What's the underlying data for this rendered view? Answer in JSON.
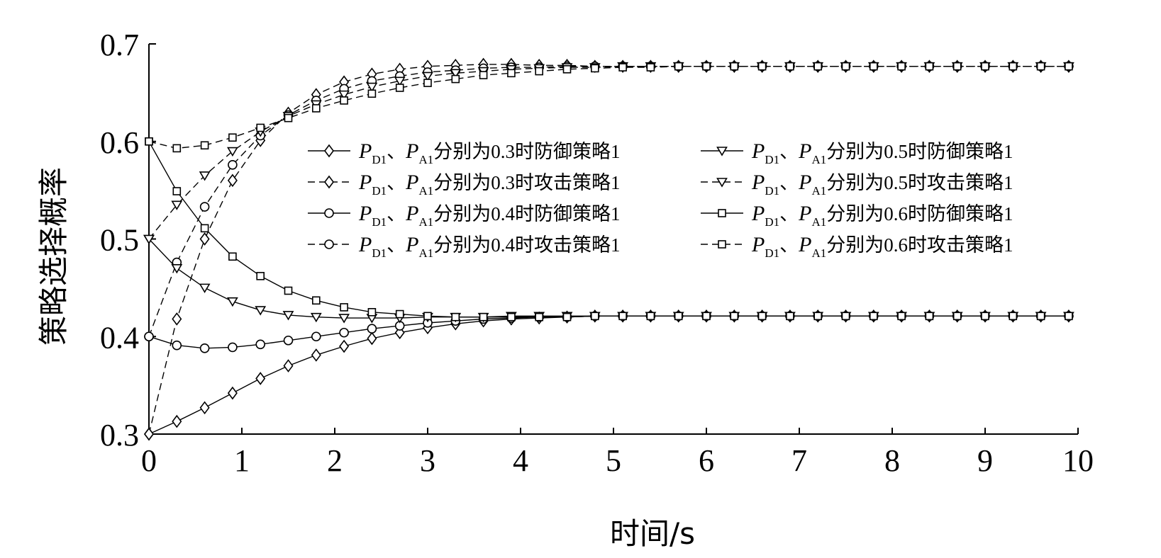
{
  "chart_data": {
    "type": "line",
    "xlabel": "时间/s",
    "ylabel": "策略选择概率",
    "xlim": [
      0,
      10
    ],
    "ylim": [
      0.3,
      0.7
    ],
    "xticks": [
      "0",
      "1",
      "2",
      "3",
      "4",
      "5",
      "6",
      "7",
      "8",
      "9",
      "10"
    ],
    "yticks": [
      "0.3",
      "0.4",
      "0.5",
      "0.6",
      "0.7"
    ],
    "grid": false,
    "legend_position": "center-right",
    "colors": {
      "line": "#000000",
      "background": "#ffffff"
    },
    "x": [
      0,
      0.3,
      0.6,
      0.9,
      1.2,
      1.5,
      1.8,
      2.1,
      2.4,
      2.7,
      3.0,
      3.3,
      3.6,
      3.9,
      4.2,
      4.5,
      4.8,
      5.1,
      5.4,
      5.7,
      6.0,
      6.3,
      6.6,
      6.9,
      7.2,
      7.5,
      7.8,
      8.1,
      8.4,
      8.7,
      9.0,
      9.3,
      9.6,
      9.9
    ],
    "series": [
      {
        "legend": {
          "var1": "P",
          "sub1": "D1",
          "sep": "、",
          "var2": "P",
          "sub2": "A1",
          "text": "分别为",
          "num": "0.3",
          "suffix": "时防御策略",
          "tail": "1"
        },
        "marker": "diamond",
        "dash": "solid",
        "values": [
          0.3,
          0.313,
          0.327,
          0.342,
          0.357,
          0.37,
          0.381,
          0.39,
          0.398,
          0.404,
          0.409,
          0.413,
          0.416,
          0.418,
          0.419,
          0.42,
          0.421,
          0.421,
          0.421,
          0.421,
          0.421,
          0.421,
          0.421,
          0.421,
          0.421,
          0.421,
          0.421,
          0.421,
          0.421,
          0.421,
          0.421,
          0.421,
          0.421,
          0.421
        ]
      },
      {
        "legend": {
          "var1": "P",
          "sub1": "D1",
          "sep": "、",
          "var2": "P",
          "sub2": "A1",
          "text": "分别为",
          "num": "0.3",
          "suffix": "时攻击策略",
          "tail": "1"
        },
        "marker": "diamond",
        "dash": "dashed",
        "values": [
          0.3,
          0.418,
          0.5,
          0.56,
          0.601,
          0.629,
          0.648,
          0.661,
          0.669,
          0.674,
          0.677,
          0.678,
          0.679,
          0.679,
          0.678,
          0.678,
          0.677,
          0.677,
          0.677,
          0.677,
          0.677,
          0.677,
          0.677,
          0.677,
          0.677,
          0.677,
          0.677,
          0.677,
          0.677,
          0.677,
          0.677,
          0.677,
          0.677,
          0.677
        ]
      },
      {
        "legend": {
          "var1": "P",
          "sub1": "D1",
          "sep": "、",
          "var2": "P",
          "sub2": "A1",
          "text": "分别为",
          "num": "0.4",
          "suffix": "时防御策略",
          "tail": "1"
        },
        "marker": "circle",
        "dash": "solid",
        "values": [
          0.4,
          0.391,
          0.388,
          0.389,
          0.392,
          0.396,
          0.4,
          0.404,
          0.408,
          0.411,
          0.414,
          0.416,
          0.418,
          0.419,
          0.42,
          0.42,
          0.421,
          0.421,
          0.421,
          0.421,
          0.421,
          0.421,
          0.421,
          0.421,
          0.421,
          0.421,
          0.421,
          0.421,
          0.421,
          0.421,
          0.421,
          0.421,
          0.421,
          0.421
        ]
      },
      {
        "legend": {
          "var1": "P",
          "sub1": "D1",
          "sep": "、",
          "var2": "P",
          "sub2": "A1",
          "text": "分别为",
          "num": "0.4",
          "suffix": "时攻击策略",
          "tail": "1"
        },
        "marker": "circle",
        "dash": "dashed",
        "values": [
          0.4,
          0.476,
          0.533,
          0.576,
          0.606,
          0.627,
          0.642,
          0.654,
          0.662,
          0.667,
          0.671,
          0.673,
          0.675,
          0.676,
          0.676,
          0.677,
          0.677,
          0.677,
          0.677,
          0.677,
          0.677,
          0.677,
          0.677,
          0.677,
          0.677,
          0.677,
          0.677,
          0.677,
          0.677,
          0.677,
          0.677,
          0.677,
          0.677,
          0.677
        ]
      },
      {
        "legend": {
          "var1": "P",
          "sub1": "D1",
          "sep": "、",
          "var2": "P",
          "sub2": "A1",
          "text": "分别为",
          "num": "0.5",
          "suffix": "时防御策略",
          "tail": "1"
        },
        "marker": "triangle-down",
        "dash": "solid",
        "values": [
          0.5,
          0.47,
          0.45,
          0.436,
          0.427,
          0.422,
          0.42,
          0.419,
          0.419,
          0.419,
          0.42,
          0.42,
          0.42,
          0.421,
          0.421,
          0.421,
          0.421,
          0.421,
          0.421,
          0.421,
          0.421,
          0.421,
          0.421,
          0.421,
          0.421,
          0.421,
          0.421,
          0.421,
          0.421,
          0.421,
          0.421,
          0.421,
          0.421,
          0.421
        ]
      },
      {
        "legend": {
          "var1": "P",
          "sub1": "D1",
          "sep": "、",
          "var2": "P",
          "sub2": "A1",
          "text": "分别为",
          "num": "0.5",
          "suffix": "时攻击策略",
          "tail": "1"
        },
        "marker": "triangle-down",
        "dash": "dashed",
        "values": [
          0.5,
          0.535,
          0.565,
          0.59,
          0.61,
          0.626,
          0.638,
          0.648,
          0.656,
          0.662,
          0.667,
          0.67,
          0.672,
          0.674,
          0.675,
          0.676,
          0.676,
          0.677,
          0.677,
          0.677,
          0.677,
          0.677,
          0.677,
          0.677,
          0.677,
          0.677,
          0.677,
          0.677,
          0.677,
          0.677,
          0.677,
          0.677,
          0.677,
          0.677
        ]
      },
      {
        "legend": {
          "var1": "P",
          "sub1": "D1",
          "sep": "、",
          "var2": "P",
          "sub2": "A1",
          "text": "分别为",
          "num": "0.6",
          "suffix": "时防御策略",
          "tail": "1"
        },
        "marker": "square",
        "dash": "solid",
        "values": [
          0.6,
          0.549,
          0.511,
          0.482,
          0.462,
          0.447,
          0.437,
          0.43,
          0.425,
          0.423,
          0.421,
          0.42,
          0.42,
          0.42,
          0.42,
          0.42,
          0.421,
          0.421,
          0.421,
          0.421,
          0.421,
          0.421,
          0.421,
          0.421,
          0.421,
          0.421,
          0.421,
          0.421,
          0.421,
          0.421,
          0.421,
          0.421,
          0.421,
          0.421
        ]
      },
      {
        "legend": {
          "var1": "P",
          "sub1": "D1",
          "sep": "、",
          "var2": "P",
          "sub2": "A1",
          "text": "分别为",
          "num": "0.6",
          "suffix": "时攻击策略",
          "tail": "1"
        },
        "marker": "square",
        "dash": "dashed",
        "values": [
          0.6,
          0.593,
          0.596,
          0.604,
          0.614,
          0.624,
          0.634,
          0.642,
          0.649,
          0.655,
          0.66,
          0.664,
          0.668,
          0.67,
          0.672,
          0.674,
          0.675,
          0.676,
          0.676,
          0.677,
          0.677,
          0.677,
          0.677,
          0.677,
          0.677,
          0.677,
          0.677,
          0.677,
          0.677,
          0.677,
          0.677,
          0.677,
          0.677,
          0.677
        ]
      }
    ]
  }
}
